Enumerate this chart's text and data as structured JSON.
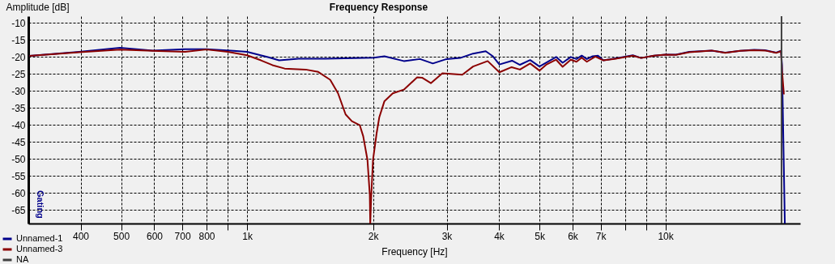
{
  "chart_data": {
    "type": "line",
    "title": "Frequency Response",
    "xlabel": "Frequency [Hz]",
    "ylabel": "Amplitude [dB]",
    "log": "x",
    "grid": true,
    "legend": "bottom left",
    "annotations": [
      "Gating"
    ],
    "xlim": [
      300,
      21000
    ],
    "ylim": [
      -69,
      -8
    ],
    "xticks": [
      400,
      500,
      600,
      700,
      800,
      {
        "value": 900,
        "label": null
      },
      {
        "value": 1000,
        "label": "1k"
      },
      {
        "value": 2000,
        "label": "2k"
      },
      {
        "value": 3000,
        "label": "3k"
      },
      {
        "value": 4000,
        "label": "4k"
      },
      {
        "value": 5000,
        "label": "5k"
      },
      {
        "value": 6000,
        "label": "6k"
      },
      {
        "value": 7000,
        "label": "7k"
      },
      {
        "value": 8000,
        "label": null
      },
      {
        "value": 9000,
        "label": null
      },
      {
        "value": 10000,
        "label": "10k"
      }
    ],
    "yticks": [
      -10,
      -15,
      -20,
      -25,
      -30,
      -35,
      -40,
      -45,
      -50,
      -55,
      -60,
      -65
    ],
    "series": [
      {
        "name": "Unnamed-1",
        "color": "#00008b",
        "x": [
          302,
          397,
          497,
          595,
          711,
          799,
          929,
          1000,
          1126,
          1193,
          1327,
          1537,
          2009,
          2130,
          2370,
          2590,
          2780,
          3000,
          3230,
          3470,
          3720,
          3870,
          4010,
          4300,
          4490,
          4750,
          5000,
          5200,
          5480,
          5680,
          5940,
          6130,
          6310,
          6490,
          6700,
          6900,
          7110,
          7620,
          8360,
          8750,
          9390,
          10000,
          10600,
          11400,
          12900,
          13900,
          15100,
          16300,
          17300,
          18400,
          18900,
          19000,
          19300
        ],
        "values": [
          -19.7,
          -18.5,
          -17.3,
          -18.1,
          -17.7,
          -17.7,
          -18.2,
          -18.5,
          -20.1,
          -21,
          -20.5,
          -20.5,
          -20.2,
          -19.8,
          -21.2,
          -20.6,
          -21.9,
          -20.6,
          -20.3,
          -19,
          -18.3,
          -19.8,
          -22.2,
          -21.1,
          -22.3,
          -20.9,
          -22.8,
          -21.6,
          -20,
          -21.7,
          -20,
          -20.6,
          -19.6,
          -20.6,
          -19.8,
          -19.6,
          -21,
          -20.4,
          -19.5,
          -20.3,
          -19.6,
          -19.3,
          -19.3,
          -18.5,
          -18.1,
          -18.7,
          -18.2,
          -17.9,
          -18,
          -18.7,
          -18.2,
          -22.3,
          -69
        ]
      },
      {
        "name": "Unnamed-3",
        "color": "#8b0000",
        "x": [
          302,
          397,
          497,
          595,
          711,
          799,
          900,
          1000,
          1080,
          1150,
          1230,
          1380,
          1480,
          1580,
          1650,
          1720,
          1780,
          1860,
          1895,
          1940,
          1965,
          1970,
          1980,
          2000,
          2040,
          2070,
          2130,
          2230,
          2370,
          2550,
          2620,
          2750,
          2930,
          3270,
          3470,
          3760,
          4010,
          4290,
          4490,
          4750,
          5000,
          5200,
          5480,
          5680,
          5940,
          6130,
          6310,
          6490,
          6800,
          7110,
          7620,
          8360,
          8750,
          9390,
          10000,
          10600,
          11400,
          12900,
          13900,
          15100,
          16300,
          17300,
          18400,
          18900,
          19000,
          19200
        ],
        "values": [
          -19.7,
          -18.6,
          -17.8,
          -18.2,
          -18.5,
          -17.8,
          -18.5,
          -19.5,
          -21,
          -22.4,
          -23.4,
          -23.7,
          -24.4,
          -26.7,
          -30.7,
          -36.9,
          -38.9,
          -40.1,
          -43.3,
          -50.3,
          -60.5,
          -69,
          -61.5,
          -50.3,
          -42.5,
          -37.8,
          -33,
          -30.7,
          -29.6,
          -26,
          -26.1,
          -27.7,
          -24.8,
          -25.2,
          -22.8,
          -21.2,
          -24.5,
          -23,
          -23.7,
          -21.9,
          -24,
          -22.2,
          -20.8,
          -22.9,
          -20.8,
          -21.4,
          -20.2,
          -21.4,
          -19.9,
          -21,
          -20.5,
          -19.6,
          -20.3,
          -19.6,
          -19.3,
          -19.4,
          -18.6,
          -18.1,
          -18.8,
          -18.2,
          -18,
          -18.1,
          -18.8,
          -18.3,
          -24,
          -31
        ]
      },
      {
        "name": "NA",
        "color": "#404040",
        "x": [
          18950,
          18950
        ],
        "values": [
          -8,
          -69
        ]
      }
    ]
  }
}
